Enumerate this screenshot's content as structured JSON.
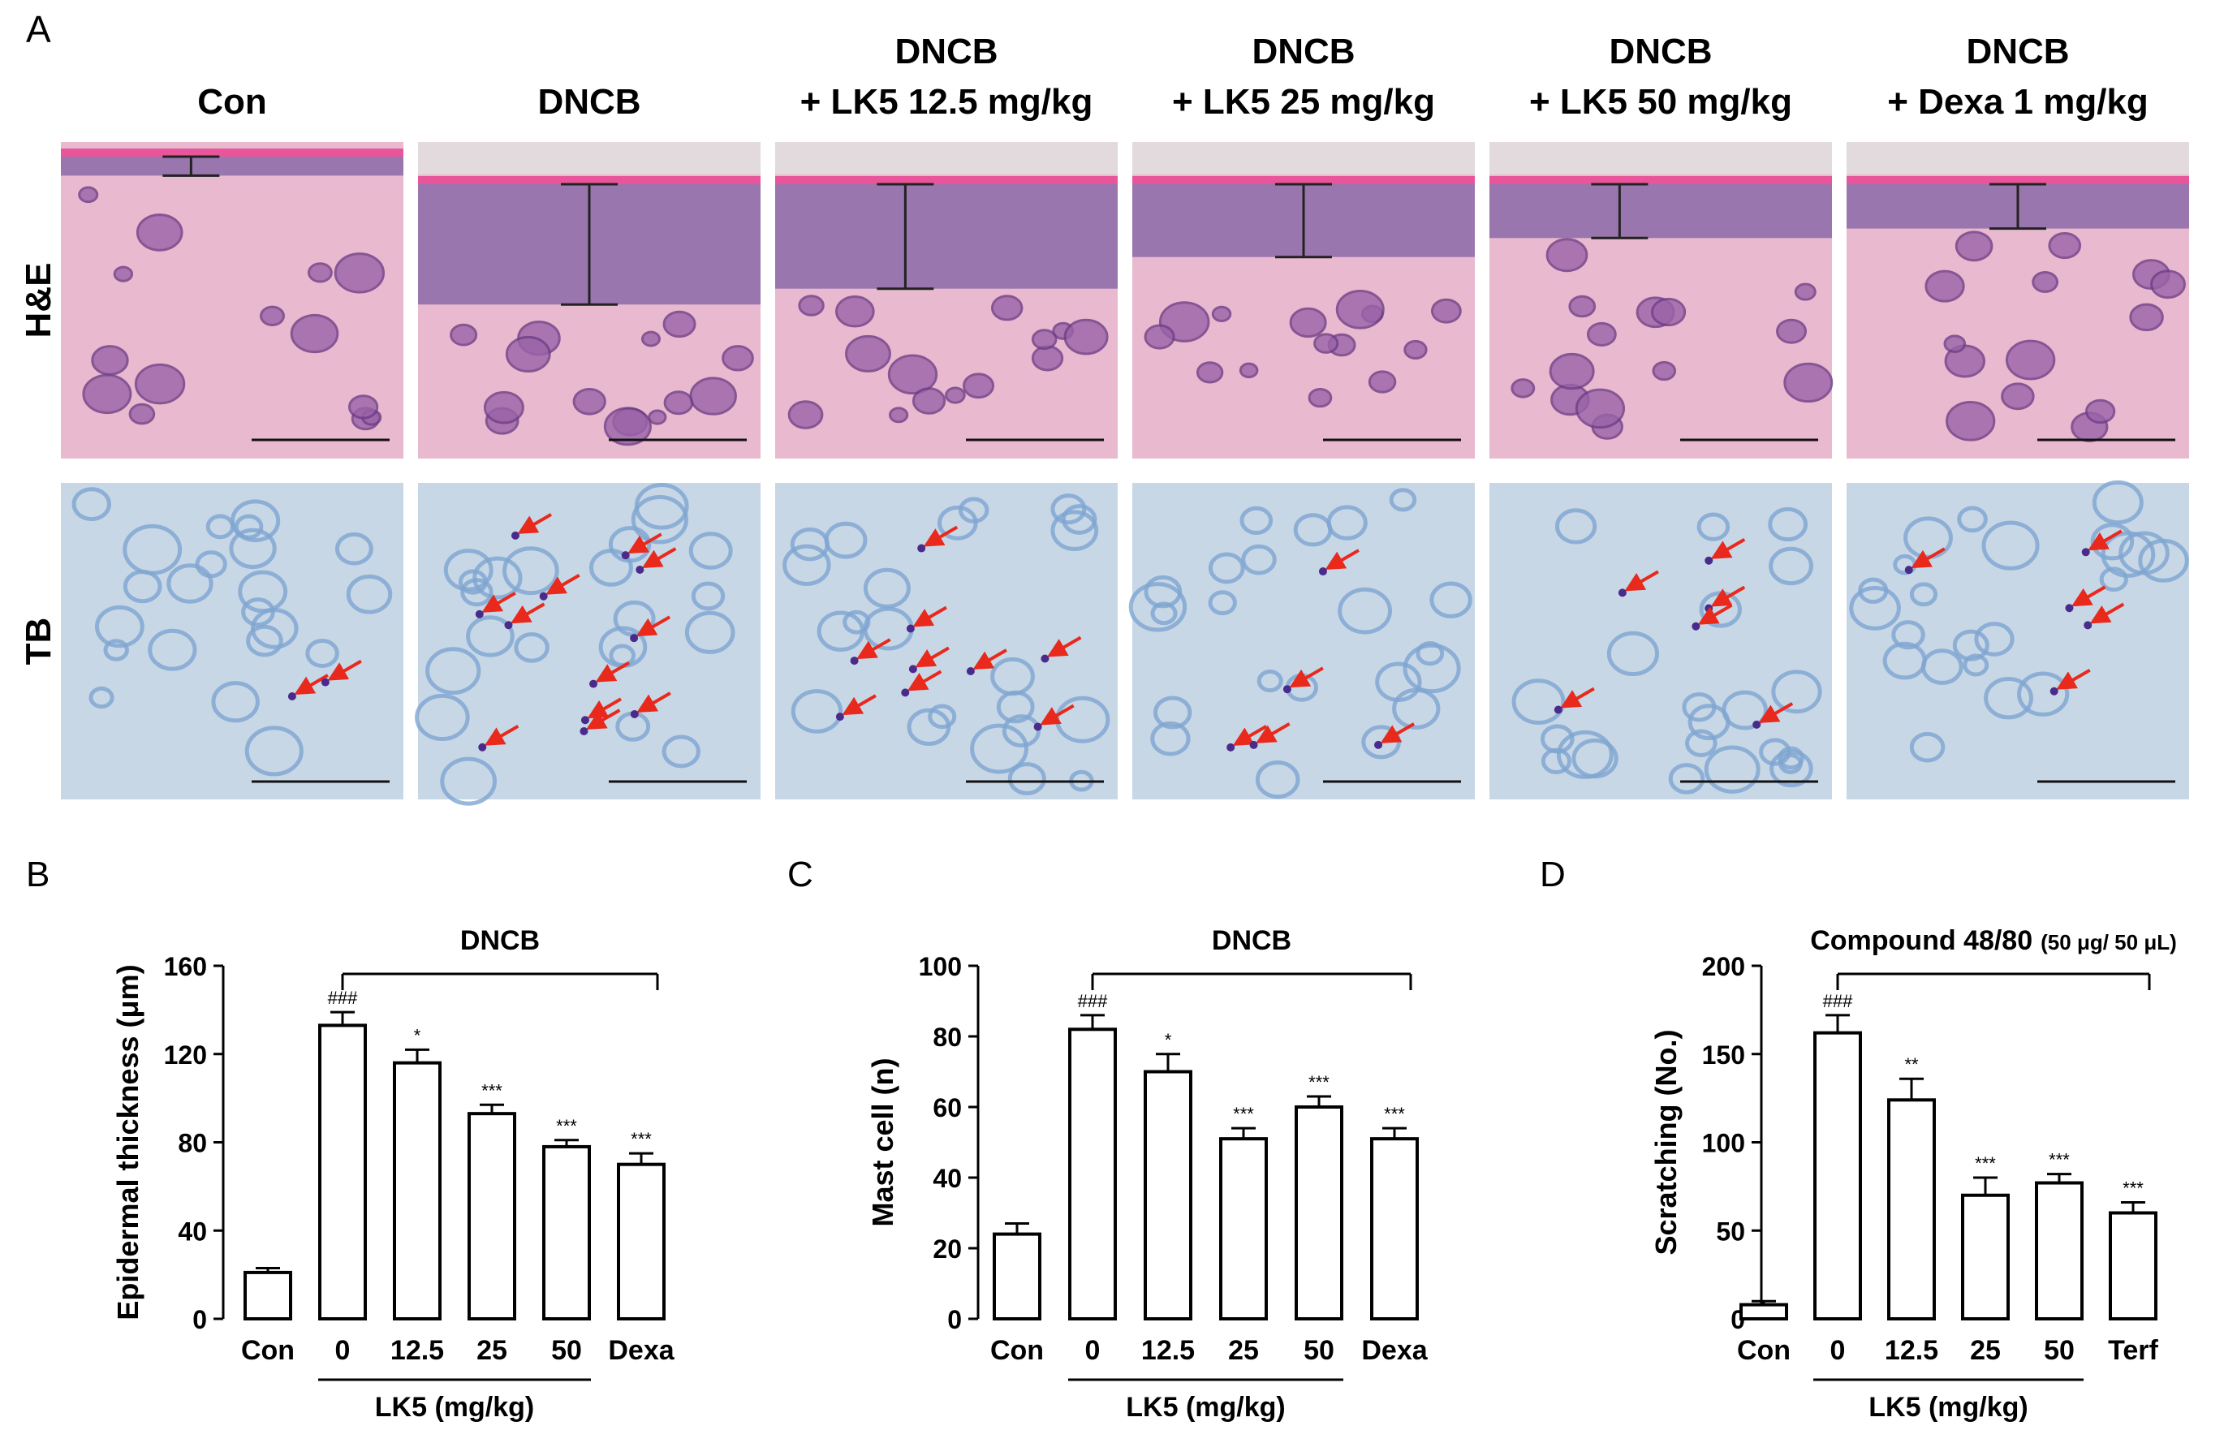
{
  "panel_a": {
    "letter": "A",
    "columns": [
      {
        "line1": "",
        "line2": "Con"
      },
      {
        "line1": "",
        "line2": "DNCB"
      },
      {
        "line1": "DNCB",
        "line2": "+ LK5 12.5 mg/kg"
      },
      {
        "line1": "DNCB",
        "line2": "+ LK5 25 mg/kg"
      },
      {
        "line1": "DNCB",
        "line2": "+ LK5 50 mg/kg"
      },
      {
        "line1": "DNCB",
        "line2": "+ Dexa 1 mg/kg"
      }
    ],
    "rows": [
      "H&E",
      "TB"
    ],
    "colors": {
      "he_background": "#e8b9cf",
      "he_epidermis": "#8c6aa8",
      "he_stratum": "#e9559a",
      "tb_background": "#c7d7e6",
      "tb_tissue": "#7ea5d1",
      "arrow": "#e8291c"
    },
    "epidermis_fraction": [
      0.06,
      0.38,
      0.33,
      0.23,
      0.17,
      0.14
    ],
    "mast_cell_arrows": [
      2,
      12,
      9,
      5,
      6,
      5
    ]
  },
  "chart_data": [
    {
      "type": "bar",
      "letter": "B",
      "categories": [
        "Con",
        "0",
        "12.5",
        "25",
        "50",
        "Dexa"
      ],
      "values": [
        21,
        133,
        116,
        93,
        78,
        70
      ],
      "errors": [
        2,
        6,
        6,
        4,
        3,
        5
      ],
      "annotations": [
        "",
        "###",
        "*",
        "***",
        "***",
        "***"
      ],
      "ylabel": "Epidermal thickness (μm)",
      "ylim": [
        0,
        160
      ],
      "yticks": [
        "0",
        "40",
        "80",
        "120",
        "160"
      ],
      "bracket_label": "DNCB",
      "bracket_note": "",
      "group_label": "LK5 (mg/kg)"
    },
    {
      "type": "bar",
      "letter": "C",
      "categories": [
        "Con",
        "0",
        "12.5",
        "25",
        "50",
        "Dexa"
      ],
      "values": [
        24,
        82,
        70,
        51,
        60,
        51
      ],
      "errors": [
        3,
        4,
        5,
        3,
        3,
        3
      ],
      "annotations": [
        "",
        "###",
        "*",
        "***",
        "***",
        "***"
      ],
      "ylabel": "Mast cell (n)",
      "ylim": [
        0,
        100
      ],
      "yticks": [
        "0",
        "20",
        "40",
        "60",
        "80",
        "100"
      ],
      "bracket_label": "DNCB",
      "bracket_note": "",
      "group_label": "LK5 (mg/kg)"
    },
    {
      "type": "bar",
      "letter": "D",
      "categories": [
        "Con",
        "0",
        "12.5",
        "25",
        "50",
        "Terf"
      ],
      "values": [
        8,
        162,
        124,
        70,
        77,
        60
      ],
      "errors": [
        2,
        10,
        12,
        10,
        5,
        6
      ],
      "annotations": [
        "",
        "###",
        "**",
        "***",
        "***",
        "***"
      ],
      "ylabel": "Scratching (No.)",
      "ylim": [
        0,
        200
      ],
      "yticks": [
        "0",
        "50",
        "100",
        "150",
        "200"
      ],
      "bracket_label": "Compound 48/80",
      "bracket_note": "(50 μg/ 50 μL)",
      "group_label": "LK5 (mg/kg)"
    }
  ]
}
